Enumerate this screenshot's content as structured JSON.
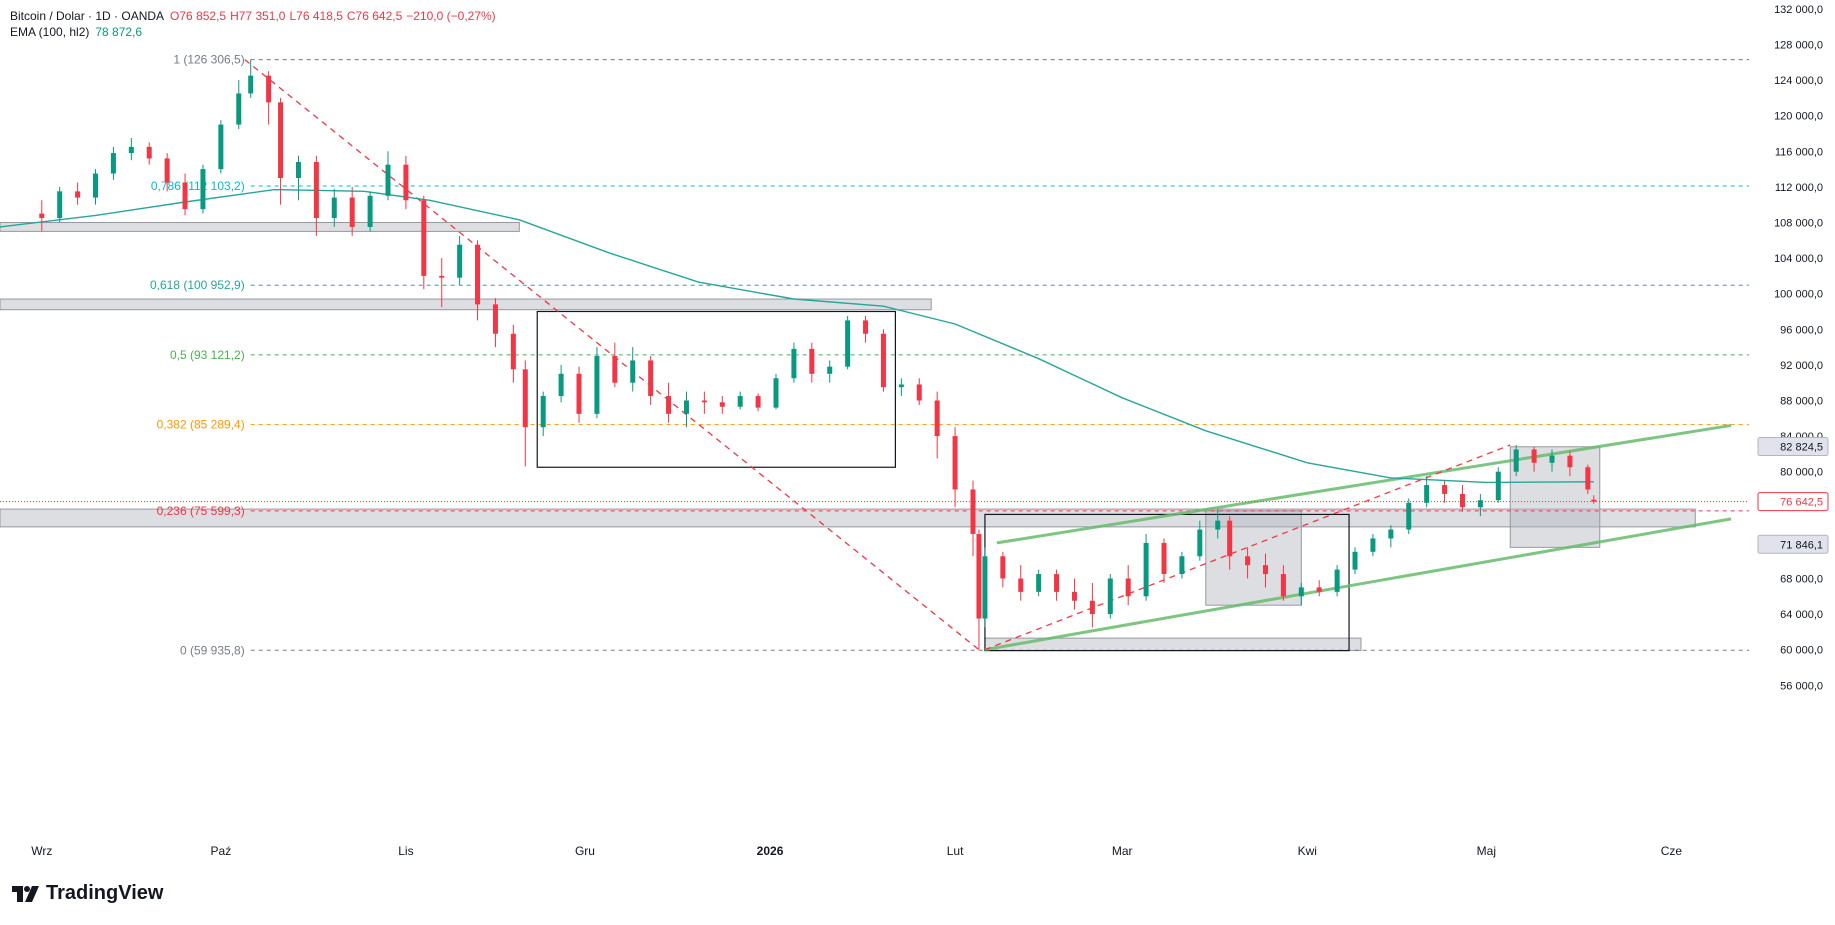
{
  "header": {
    "symbol": "Bitcoin / Dolar · 1D · OANDA",
    "open": "O76 852,5",
    "high": "H77 351,0",
    "low": "L76 418,5",
    "close": "C76 642,5",
    "change": "−210,0 (−0,27%)",
    "ema_label": "EMA (100, hl2)",
    "ema_value": "78 872,6"
  },
  "branding": {
    "name": "TradingView"
  },
  "colors": {
    "up": "#089981",
    "down": "#f23645",
    "ema": "#26a69a",
    "channel": "#66bb6a",
    "fib_0_786": "#00bcd4",
    "fib_0_618": "#26a69a",
    "fib_0_5": "#4caf50",
    "fib_0_382": "#ff9800",
    "fib_0_236": "#f23645",
    "fib_gray": "#787b86"
  },
  "chart_data": {
    "type": "candlestick",
    "title": "Bitcoin / Dolar · 1D · OANDA",
    "ylim": [
      53000,
      133000
    ],
    "grid": false,
    "y_ticks": [
      {
        "value": 132000,
        "label": "132 000,0"
      },
      {
        "value": 128000,
        "label": "128 000,0"
      },
      {
        "value": 124000,
        "label": "124 000,0"
      },
      {
        "value": 120000,
        "label": "120 000,0"
      },
      {
        "value": 116000,
        "label": "116 000,0"
      },
      {
        "value": 112000,
        "label": "112 000,0"
      },
      {
        "value": 108000,
        "label": "108 000,0"
      },
      {
        "value": 104000,
        "label": "104 000,0"
      },
      {
        "value": 100000,
        "label": "100 000,0"
      },
      {
        "value": 96000,
        "label": "96 000,0"
      },
      {
        "value": 92000,
        "label": "92 000,0"
      },
      {
        "value": 88000,
        "label": "88 000,0"
      },
      {
        "value": 84000,
        "label": "84 000,0"
      },
      {
        "value": 80000,
        "label": "80 000,0"
      },
      {
        "value": 68000,
        "label": "68 000,0"
      },
      {
        "value": 64000,
        "label": "64 000,0"
      },
      {
        "value": 60000,
        "label": "60 000,0"
      },
      {
        "value": 56000,
        "label": "56 000,0"
      }
    ],
    "price_labels": [
      {
        "value": 82824.5,
        "label": "82 824,5",
        "style": "gray"
      },
      {
        "value": 76642.5,
        "label": "76 642,5",
        "style": "red"
      },
      {
        "value": 71846.1,
        "label": "71 846,1",
        "style": "gray"
      }
    ],
    "x_ticks": [
      {
        "date": "2025-09-01",
        "label": "Wrz"
      },
      {
        "date": "2025-10-01",
        "label": "Paź"
      },
      {
        "date": "2025-11-01",
        "label": "Lis"
      },
      {
        "date": "2025-12-01",
        "label": "Gru"
      },
      {
        "date": "2026-01-01",
        "label": "2026"
      },
      {
        "date": "2026-02-01",
        "label": "Lut"
      },
      {
        "date": "2026-03-01",
        "label": "Mar"
      },
      {
        "date": "2026-04-01",
        "label": "Kwi"
      },
      {
        "date": "2026-05-01",
        "label": "Maj"
      },
      {
        "date": "2026-06-01",
        "label": "Cze"
      }
    ],
    "x_range": [
      "2025-08-25",
      "2026-06-14"
    ],
    "fib_levels": [
      {
        "ratio": "1",
        "value": 126306.5,
        "label": "1 (126 306,5)",
        "color": "#787b86"
      },
      {
        "ratio": "0.786",
        "value": 112103.2,
        "label": "0,786 (112 103,2)",
        "color": "#00bcd4"
      },
      {
        "ratio": "0.618",
        "value": 100952.9,
        "label": "0,618 (100 952,9)",
        "color": "#26a69a"
      },
      {
        "ratio": "0.5",
        "value": 93121.2,
        "label": "0,5 (93 121,2)",
        "color": "#4caf50"
      },
      {
        "ratio": "0.382",
        "value": 85289.4,
        "label": "0,382 (85 289,4)",
        "color": "#ff9800"
      },
      {
        "ratio": "0.236",
        "value": 75599.3,
        "label": "0,236 (75 599,3)",
        "color": "#f23645"
      },
      {
        "ratio": "0",
        "value": 59935.8,
        "label": "0 (59 935,8)",
        "color": "#787b86"
      }
    ],
    "zones": [
      {
        "x0": "2025-08-25",
        "x1": "2025-11-20",
        "y0": 107000,
        "y1": 108000
      },
      {
        "x0": "2025-08-25",
        "x1": "2026-01-28",
        "y0": 98200,
        "y1": 99400
      },
      {
        "x0": "2025-08-25",
        "x1": "2026-06-05",
        "y0": 73800,
        "y1": 75800
      },
      {
        "x0": "2026-02-06",
        "x1": "2026-04-10",
        "y0": 59900,
        "y1": 61300
      },
      {
        "x0": "2026-03-15",
        "x1": "2026-03-31",
        "y0": 65000,
        "y1": 75600
      },
      {
        "x0": "2026-05-05",
        "x1": "2026-05-20",
        "y0": 71500,
        "y1": 82800
      }
    ],
    "boxes": [
      {
        "x0": "2025-11-23",
        "x1": "2026-01-22",
        "y0": 80500,
        "y1": 98000
      },
      {
        "x0": "2026-02-06",
        "x1": "2026-04-08",
        "y0": 59900,
        "y1": 75200
      }
    ],
    "channel_lines": [
      {
        "x0": "2026-02-08",
        "y0": 72000,
        "x1": "2026-06-11",
        "y1": 85200
      },
      {
        "x0": "2026-02-06",
        "y0": 60000,
        "x1": "2026-06-11",
        "y1": 74700
      }
    ],
    "dashed_trends": [
      {
        "x0": "2025-10-05",
        "y0": 126300,
        "x1": "2026-02-05",
        "y1": 60000
      },
      {
        "x0": "2026-02-06",
        "y0": 60000,
        "x1": "2026-05-05",
        "y1": 83000
      }
    ],
    "ema": [
      {
        "date": "2025-08-25",
        "value": 107500
      },
      {
        "date": "2025-09-10",
        "value": 108800
      },
      {
        "date": "2025-09-25",
        "value": 110300
      },
      {
        "date": "2025-10-10",
        "value": 111700
      },
      {
        "date": "2025-10-25",
        "value": 111500
      },
      {
        "date": "2025-11-05",
        "value": 110500
      },
      {
        "date": "2025-11-20",
        "value": 108300
      },
      {
        "date": "2025-12-05",
        "value": 104600
      },
      {
        "date": "2025-12-20",
        "value": 101300
      },
      {
        "date": "2026-01-05",
        "value": 99400
      },
      {
        "date": "2026-01-20",
        "value": 98600
      },
      {
        "date": "2026-02-01",
        "value": 96600
      },
      {
        "date": "2026-02-15",
        "value": 92700
      },
      {
        "date": "2026-03-01",
        "value": 88300
      },
      {
        "date": "2026-03-15",
        "value": 84600
      },
      {
        "date": "2026-04-01",
        "value": 81000
      },
      {
        "date": "2026-04-15",
        "value": 79300
      },
      {
        "date": "2026-05-01",
        "value": 78800
      },
      {
        "date": "2026-05-19",
        "value": 78870
      }
    ],
    "candles": [
      [
        "2025-09-01",
        109000,
        110500,
        107000,
        108500
      ],
      [
        "2025-09-04",
        108500,
        112000,
        108000,
        111500
      ],
      [
        "2025-09-07",
        111500,
        112500,
        110000,
        110800
      ],
      [
        "2025-09-10",
        110800,
        114000,
        110000,
        113500
      ],
      [
        "2025-09-13",
        113500,
        116500,
        112800,
        115800
      ],
      [
        "2025-09-16",
        115800,
        117500,
        115000,
        116500
      ],
      [
        "2025-09-19",
        116500,
        117000,
        114500,
        115200
      ],
      [
        "2025-09-22",
        115200,
        115800,
        111500,
        112500
      ],
      [
        "2025-09-25",
        112500,
        113500,
        108800,
        109500
      ],
      [
        "2025-09-28",
        109500,
        114500,
        109000,
        114000
      ],
      [
        "2025-10-01",
        114000,
        119500,
        113500,
        119000
      ],
      [
        "2025-10-04",
        119000,
        124000,
        118500,
        122500
      ],
      [
        "2025-10-06",
        122500,
        126300,
        122000,
        124500
      ],
      [
        "2025-10-09",
        124500,
        125000,
        119000,
        121500
      ],
      [
        "2025-10-11",
        121500,
        122000,
        110000,
        113000
      ],
      [
        "2025-10-14",
        113000,
        115500,
        110500,
        114800
      ],
      [
        "2025-10-17",
        114800,
        115500,
        106500,
        108500
      ],
      [
        "2025-10-20",
        108500,
        111800,
        107500,
        110800
      ],
      [
        "2025-10-23",
        110800,
        112000,
        106500,
        107500
      ],
      [
        "2025-10-26",
        107500,
        111500,
        107000,
        111000
      ],
      [
        "2025-10-29",
        111000,
        116000,
        110500,
        114500
      ],
      [
        "2025-11-01",
        114500,
        115500,
        109500,
        110500
      ],
      [
        "2025-11-04",
        110500,
        111000,
        100500,
        102000
      ],
      [
        "2025-11-07",
        102000,
        104000,
        98500,
        101800
      ],
      [
        "2025-11-10",
        101800,
        106500,
        101000,
        105500
      ],
      [
        "2025-11-13",
        105500,
        106000,
        97000,
        98800
      ],
      [
        "2025-11-16",
        98800,
        99500,
        94000,
        95500
      ],
      [
        "2025-11-19",
        95500,
        96500,
        90000,
        91500
      ],
      [
        "2025-11-21",
        91500,
        92500,
        80600,
        85000
      ],
      [
        "2025-11-24",
        85000,
        89000,
        84000,
        88500
      ],
      [
        "2025-11-27",
        88500,
        92000,
        87800,
        91000
      ],
      [
        "2025-11-30",
        91000,
        91800,
        85500,
        86500
      ],
      [
        "2025-12-03",
        86500,
        94000,
        86000,
        93000
      ],
      [
        "2025-12-06",
        93000,
        94500,
        89500,
        90000
      ],
      [
        "2025-12-09",
        90000,
        94000,
        89000,
        92500
      ],
      [
        "2025-12-12",
        92500,
        93000,
        87500,
        88500
      ],
      [
        "2025-12-15",
        88500,
        90000,
        85500,
        86500
      ],
      [
        "2025-12-18",
        86500,
        89000,
        85000,
        88000
      ],
      [
        "2025-12-21",
        88000,
        89000,
        86500,
        87800
      ],
      [
        "2025-12-24",
        87800,
        88500,
        86500,
        87300
      ],
      [
        "2025-12-27",
        87300,
        89000,
        87000,
        88500
      ],
      [
        "2025-12-30",
        88500,
        88800,
        86800,
        87200
      ],
      [
        "2026-01-02",
        87200,
        91000,
        87000,
        90500
      ],
      [
        "2026-01-05",
        90500,
        94500,
        90000,
        93800
      ],
      [
        "2026-01-08",
        93800,
        94500,
        90000,
        91000
      ],
      [
        "2026-01-11",
        91000,
        92500,
        90000,
        91800
      ],
      [
        "2026-01-14",
        91800,
        97500,
        91500,
        97000
      ],
      [
        "2026-01-17",
        97000,
        97500,
        94500,
        95500
      ],
      [
        "2026-01-20",
        95500,
        96000,
        89000,
        89500
      ],
      [
        "2026-01-23",
        89500,
        90500,
        88500,
        89800
      ],
      [
        "2026-01-26",
        89800,
        90500,
        87500,
        88000
      ],
      [
        "2026-01-29",
        88000,
        89000,
        81500,
        84000
      ],
      [
        "2026-02-01",
        84000,
        85000,
        76000,
        78000
      ],
      [
        "2026-02-04",
        78000,
        79000,
        70500,
        73000
      ],
      [
        "2026-02-05",
        73000,
        73500,
        60000,
        63500
      ],
      [
        "2026-02-06",
        63500,
        71500,
        62500,
        70500
      ],
      [
        "2026-02-09",
        70500,
        71000,
        67000,
        68000
      ],
      [
        "2026-02-12",
        68000,
        69500,
        65500,
        66500
      ],
      [
        "2026-02-15",
        66500,
        69000,
        66000,
        68500
      ],
      [
        "2026-02-18",
        68500,
        69000,
        65500,
        66500
      ],
      [
        "2026-02-21",
        66500,
        68000,
        64500,
        65500
      ],
      [
        "2026-02-24",
        65500,
        67500,
        62500,
        64000
      ],
      [
        "2026-02-27",
        64000,
        68500,
        63500,
        68000
      ],
      [
        "2026-03-02",
        68000,
        69500,
        65000,
        66000
      ],
      [
        "2026-03-05",
        66000,
        73000,
        65500,
        72000
      ],
      [
        "2026-03-08",
        72000,
        72500,
        67500,
        68500
      ],
      [
        "2026-03-11",
        68500,
        71000,
        68000,
        70500
      ],
      [
        "2026-03-14",
        70500,
        74500,
        70000,
        73500
      ],
      [
        "2026-03-17",
        73500,
        75800,
        72500,
        74500
      ],
      [
        "2026-03-19",
        74500,
        75000,
        69000,
        70500
      ],
      [
        "2026-03-22",
        70500,
        71500,
        68000,
        69500
      ],
      [
        "2026-03-25",
        69500,
        70800,
        67000,
        68500
      ],
      [
        "2026-03-28",
        68500,
        69500,
        65500,
        66000
      ],
      [
        "2026-03-31",
        66000,
        67500,
        65000,
        67000
      ],
      [
        "2026-04-03",
        67000,
        67800,
        66000,
        66500
      ],
      [
        "2026-04-06",
        66500,
        69500,
        66000,
        69000
      ],
      [
        "2026-04-09",
        69000,
        71500,
        68500,
        71000
      ],
      [
        "2026-04-12",
        71000,
        73000,
        70500,
        72500
      ],
      [
        "2026-04-15",
        72500,
        74000,
        71500,
        73500
      ],
      [
        "2026-04-18",
        73500,
        77000,
        73000,
        76500
      ],
      [
        "2026-04-21",
        76500,
        79500,
        76000,
        78500
      ],
      [
        "2026-04-24",
        78500,
        79000,
        76500,
        77500
      ],
      [
        "2026-04-27",
        77500,
        78500,
        75500,
        76000
      ],
      [
        "2026-04-30",
        76000,
        77500,
        75000,
        76800
      ],
      [
        "2026-05-03",
        76800,
        80500,
        76500,
        80000
      ],
      [
        "2026-05-06",
        80000,
        83000,
        79500,
        82500
      ],
      [
        "2026-05-09",
        82500,
        82800,
        80000,
        81000
      ],
      [
        "2026-05-12",
        81000,
        82500,
        80000,
        81800
      ],
      [
        "2026-05-15",
        81800,
        82300,
        79500,
        80500
      ],
      [
        "2026-05-18",
        80500,
        80800,
        77500,
        78000
      ],
      [
        "2026-05-19",
        76852.5,
        77351,
        76418.5,
        76642.5
      ]
    ]
  }
}
